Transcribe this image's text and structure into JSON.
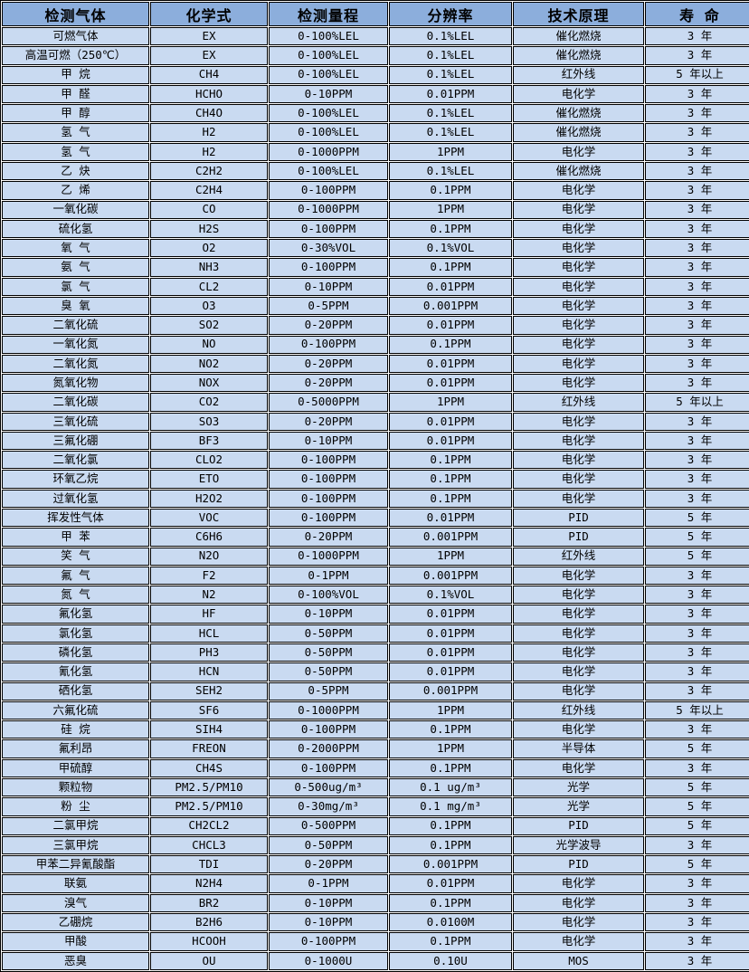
{
  "colors": {
    "header_bg": "#8CAEDC",
    "row_bg": "#C9DAF1",
    "border": "#000000",
    "text": "#000000"
  },
  "table": {
    "column_keys": [
      "gas",
      "formula",
      "range",
      "resolution",
      "principle",
      "lifespan"
    ],
    "columns": [
      "检测气体",
      "化学式",
      "检测量程",
      "分辨率",
      "技术原理",
      "寿  命"
    ],
    "rows": [
      [
        "可燃气体",
        "EX",
        "0-100%LEL",
        "0.1%LEL",
        "催化燃烧",
        "3 年"
      ],
      [
        "高温可燃（250℃）",
        "EX",
        "0-100%LEL",
        "0.1%LEL",
        "催化燃烧",
        "3 年"
      ],
      [
        "甲 烷",
        "CH4",
        "0-100%LEL",
        "0.1%LEL",
        "红外线",
        "5 年以上"
      ],
      [
        "甲 醛",
        "HCHO",
        "0-10PPM",
        "0.01PPM",
        "电化学",
        "3 年"
      ],
      [
        "甲 醇",
        "CH4O",
        "0-100%LEL",
        "0.1%LEL",
        "催化燃烧",
        "3 年"
      ],
      [
        "氢 气",
        "H2",
        "0-100%LEL",
        "0.1%LEL",
        "催化燃烧",
        "3 年"
      ],
      [
        "氢 气",
        "H2",
        "0-1000PPM",
        "1PPM",
        "电化学",
        "3 年"
      ],
      [
        "乙 炔",
        "C2H2",
        "0-100%LEL",
        "0.1%LEL",
        "催化燃烧",
        "3 年"
      ],
      [
        "乙 烯",
        "C2H4",
        "0-100PPM",
        "0.1PPM",
        "电化学",
        "3 年"
      ],
      [
        "一氧化碳",
        "CO",
        "0-1000PPM",
        "1PPM",
        "电化学",
        "3 年"
      ],
      [
        "硫化氢",
        "H2S",
        "0-100PPM",
        "0.1PPM",
        "电化学",
        "3 年"
      ],
      [
        "氧 气",
        "O2",
        "0-30%VOL",
        "0.1%VOL",
        "电化学",
        "3 年"
      ],
      [
        "氨 气",
        "NH3",
        "0-100PPM",
        "0.1PPM",
        "电化学",
        "3 年"
      ],
      [
        "氯 气",
        "CL2",
        "0-10PPM",
        "0.01PPM",
        "电化学",
        "3 年"
      ],
      [
        "臭 氧",
        "O3",
        "0-5PPM",
        "0.001PPM",
        "电化学",
        "3 年"
      ],
      [
        "二氧化硫",
        "SO2",
        "0-20PPM",
        "0.01PPM",
        "电化学",
        "3 年"
      ],
      [
        "一氧化氮",
        "NO",
        "0-100PPM",
        "0.1PPM",
        "电化学",
        "3 年"
      ],
      [
        "二氧化氮",
        "NO2",
        "0-20PPM",
        "0.01PPM",
        "电化学",
        "3 年"
      ],
      [
        "氮氧化物",
        "NOX",
        "0-20PPM",
        "0.01PPM",
        "电化学",
        "3 年"
      ],
      [
        "二氧化碳",
        "CO2",
        "0-5000PPM",
        "1PPM",
        "红外线",
        "5 年以上"
      ],
      [
        "三氧化硫",
        "SO3",
        "0-20PPM",
        "0.01PPM",
        "电化学",
        "3 年"
      ],
      [
        "三氟化硼",
        "BF3",
        "0-10PPM",
        "0.01PPM",
        "电化学",
        "3 年"
      ],
      [
        "二氧化氯",
        "CLO2",
        "0-100PPM",
        "0.1PPM",
        "电化学",
        "3 年"
      ],
      [
        "环氧乙烷",
        "ETO",
        "0-100PPM",
        "0.1PPM",
        "电化学",
        "3 年"
      ],
      [
        "过氧化氢",
        "H2O2",
        "0-100PPM",
        "0.1PPM",
        "电化学",
        "3 年"
      ],
      [
        "挥发性气体",
        "VOC",
        "0-100PPM",
        "0.01PPM",
        "PID",
        "5 年"
      ],
      [
        "甲 苯",
        "C6H6",
        "0-20PPM",
        "0.001PPM",
        "PID",
        "5 年"
      ],
      [
        "笑 气",
        "N2O",
        "0-1000PPM",
        "1PPM",
        "红外线",
        "5 年"
      ],
      [
        "氟 气",
        "F2",
        "0-1PPM",
        "0.001PPM",
        "电化学",
        "3 年"
      ],
      [
        "氮 气",
        "N2",
        "0-100%VOL",
        "0.1%VOL",
        "电化学",
        "3 年"
      ],
      [
        "氟化氢",
        "HF",
        "0-10PPM",
        "0.01PPM",
        "电化学",
        "3 年"
      ],
      [
        "氯化氢",
        "HCL",
        "0-50PPM",
        "0.01PPM",
        "电化学",
        "3 年"
      ],
      [
        "磷化氢",
        "PH3",
        "0-50PPM",
        "0.01PPM",
        "电化学",
        "3 年"
      ],
      [
        "氰化氢",
        "HCN",
        "0-50PPM",
        "0.01PPM",
        "电化学",
        "3 年"
      ],
      [
        "硒化氢",
        "SEH2",
        "0-5PPM",
        "0.001PPM",
        "电化学",
        "3 年"
      ],
      [
        "六氟化硫",
        "SF6",
        "0-1000PPM",
        "1PPM",
        "红外线",
        "5 年以上"
      ],
      [
        "硅 烷",
        "SIH4",
        "0-100PPM",
        "0.1PPM",
        "电化学",
        "3 年"
      ],
      [
        "氟利昂",
        "FREON",
        "0-2000PPM",
        "1PPM",
        "半导体",
        "5 年"
      ],
      [
        "甲硫醇",
        "CH4S",
        "0-100PPM",
        "0.1PPM",
        "电化学",
        "3 年"
      ],
      [
        "颗粒物",
        "PM2.5/PM10",
        "0-500ug/m³",
        "0.1 ug/m³",
        "光学",
        "5 年"
      ],
      [
        "粉 尘",
        "PM2.5/PM10",
        "0-30mg/m³",
        "0.1 mg/m³",
        "光学",
        "5 年"
      ],
      [
        "二氯甲烷",
        "CH2CL2",
        "0-500PPM",
        "0.1PPM",
        "PID",
        "5 年"
      ],
      [
        "三氯甲烷",
        "CHCL3",
        "0-50PPM",
        "0.1PPM",
        "光学波导",
        "3 年"
      ],
      [
        "甲苯二异氰酸酯",
        "TDI",
        "0-20PPM",
        "0.001PPM",
        "PID",
        "5 年"
      ],
      [
        "联氨",
        "N2H4",
        "0-1PPM",
        "0.01PPM",
        "电化学",
        "3 年"
      ],
      [
        "溴气",
        "BR2",
        "0-10PPM",
        "0.1PPM",
        "电化学",
        "3 年"
      ],
      [
        "乙硼烷",
        "B2H6",
        "0-10PPM",
        "0.0100M",
        "电化学",
        "3 年"
      ],
      [
        "甲酸",
        "HCOOH",
        "0-100PPM",
        "0.1PPM",
        "电化学",
        "3 年"
      ],
      [
        "恶臭",
        "OU",
        "0-1000U",
        "0.10U",
        "MOS",
        "3 年"
      ]
    ]
  }
}
